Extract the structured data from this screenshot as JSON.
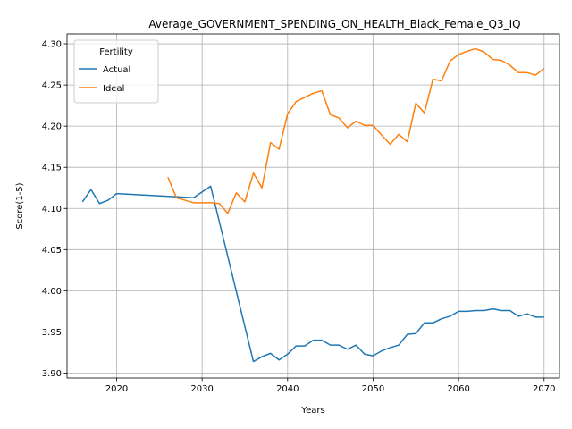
{
  "chart_data": {
    "type": "line",
    "title": "Average_GOVERNMENT_SPENDING_ON_HEALTH_Black_Female_Q3_IQ",
    "xlabel": "Years",
    "ylabel": "Score(1-5)",
    "xlim": [
      2014.2,
      2071.8
    ],
    "ylim": [
      3.894,
      4.312
    ],
    "xticks": [
      2020,
      2030,
      2040,
      2050,
      2060,
      2070
    ],
    "yticks": [
      3.9,
      3.95,
      4.0,
      4.05,
      4.1,
      4.15,
      4.2,
      4.25,
      4.3
    ],
    "ytick_labels": [
      "3.90",
      "3.95",
      "4.00",
      "4.05",
      "4.10",
      "4.15",
      "4.20",
      "4.25",
      "4.30"
    ],
    "grid": true,
    "legend": {
      "title": "Fertility",
      "placement": "upper-left"
    },
    "series": [
      {
        "name": "Actual",
        "color": "#1f77b4",
        "x": [
          2016,
          2017,
          2018,
          2019,
          2020,
          2029,
          2031,
          2036,
          2037,
          2038,
          2039,
          2040,
          2041,
          2042,
          2043,
          2044,
          2045,
          2046,
          2047,
          2048,
          2049,
          2050,
          2051,
          2052,
          2053,
          2054,
          2055,
          2056,
          2057,
          2058,
          2059,
          2060,
          2061,
          2062,
          2063,
          2064,
          2065,
          2066,
          2067,
          2068,
          2069,
          2070
        ],
        "y": [
          4.108,
          4.123,
          4.106,
          4.11,
          4.118,
          4.113,
          4.127,
          3.914,
          3.92,
          3.924,
          3.916,
          3.923,
          3.933,
          3.933,
          3.94,
          3.94,
          3.934,
          3.934,
          3.929,
          3.934,
          3.923,
          3.921,
          3.927,
          3.931,
          3.934,
          3.947,
          3.948,
          3.961,
          3.961,
          3.966,
          3.969,
          3.975,
          3.975,
          3.976,
          3.976,
          3.978,
          3.976,
          3.976,
          3.969,
          3.972,
          3.968,
          3.968
        ]
      },
      {
        "name": "Ideal",
        "color": "#ff7f0e",
        "x": [
          2026,
          2027,
          2028,
          2029,
          2030,
          2031,
          2032,
          2033,
          2034,
          2035,
          2036,
          2037,
          2038,
          2039,
          2040,
          2041,
          2042,
          2043,
          2044,
          2045,
          2046,
          2047,
          2048,
          2049,
          2050,
          2051,
          2052,
          2053,
          2054,
          2055,
          2056,
          2057,
          2058,
          2059,
          2060,
          2061,
          2062,
          2063,
          2064,
          2065,
          2066,
          2067,
          2068,
          2069,
          2070
        ],
        "y": [
          4.138,
          4.113,
          4.11,
          4.107,
          4.107,
          4.107,
          4.106,
          4.094,
          4.119,
          4.108,
          4.143,
          4.125,
          4.18,
          4.172,
          4.215,
          4.23,
          4.235,
          4.24,
          4.243,
          4.214,
          4.21,
          4.198,
          4.206,
          4.201,
          4.201,
          4.189,
          4.178,
          4.19,
          4.181,
          4.228,
          4.216,
          4.257,
          4.255,
          4.279,
          4.287,
          4.291,
          4.294,
          4.29,
          4.281,
          4.28,
          4.274,
          4.265,
          4.265,
          4.262,
          4.27
        ]
      }
    ]
  }
}
